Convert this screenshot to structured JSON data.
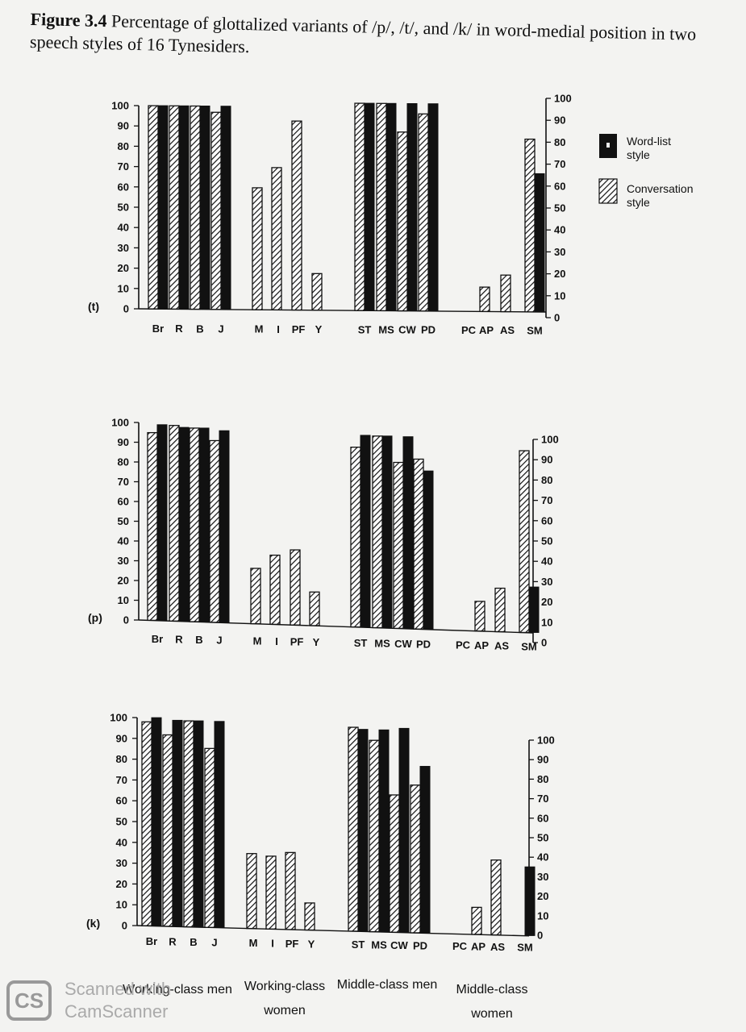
{
  "caption": {
    "figure_label": "Figure 3.4",
    "text": "Percentage of glottalized variants of /p/, /t/, and /k/ in word-medial position in two speech styles of 16 Tynesiders."
  },
  "legend": {
    "word_list": "Word-list style",
    "conversation": "Conversation style"
  },
  "group_labels": {
    "wc_men": "Working-class men",
    "wc_women": "Working-class women",
    "mc_men": "Middle-class men",
    "mc_women": "Middle-class women"
  },
  "watermark": {
    "logo": "CS",
    "line1": "Scanned with",
    "line2": "CamScanner"
  },
  "chart_data": [
    {
      "type": "bar",
      "panel_label": "(t)",
      "categories": [
        "Br",
        "R",
        "B",
        "J",
        "M",
        "I",
        "PF",
        "Y",
        "ST",
        "MS",
        "CW",
        "PD",
        "PC",
        "AP",
        "AS",
        "SM"
      ],
      "ylim": [
        0,
        100
      ],
      "yticks": [
        0,
        10,
        20,
        30,
        40,
        50,
        60,
        70,
        80,
        90,
        100
      ],
      "series": [
        {
          "name": "Conversation style",
          "values": [
            100,
            100,
            100,
            97,
            60,
            70,
            93,
            18,
            102,
            102,
            88,
            97,
            0,
            12,
            18,
            85
          ]
        },
        {
          "name": "Word-list style",
          "values": [
            100,
            100,
            100,
            100,
            null,
            null,
            null,
            null,
            102,
            102,
            102,
            102,
            null,
            null,
            null,
            68
          ]
        }
      ]
    },
    {
      "type": "bar",
      "panel_label": "(p)",
      "categories": [
        "Br",
        "R",
        "B",
        "J",
        "M",
        "I",
        "PF",
        "Y",
        "ST",
        "MS",
        "CW",
        "PD",
        "PC",
        "AP",
        "AS",
        "SM"
      ],
      "ylim": [
        0,
        100
      ],
      "yticks": [
        0,
        10,
        20,
        30,
        40,
        50,
        60,
        70,
        80,
        90,
        100
      ],
      "series": [
        {
          "name": "Conversation style",
          "values": [
            95,
            99,
            98,
            92,
            28,
            35,
            38,
            17,
            91,
            97,
            84,
            86,
            0,
            15,
            22,
            92
          ]
        },
        {
          "name": "Word-list style",
          "values": [
            99,
            98,
            98,
            97,
            null,
            null,
            null,
            null,
            97,
            97,
            97,
            80,
            null,
            null,
            null,
            23
          ]
        }
      ]
    },
    {
      "type": "bar",
      "panel_label": "(k)",
      "categories": [
        "Br",
        "R",
        "B",
        "J",
        "M",
        "I",
        "PF",
        "Y",
        "ST",
        "MS",
        "CW",
        "PD",
        "PC",
        "AP",
        "AS",
        "SM"
      ],
      "ylim": [
        0,
        100
      ],
      "yticks": [
        0,
        10,
        20,
        30,
        40,
        50,
        60,
        70,
        80,
        90,
        100
      ],
      "series": [
        {
          "name": "Conversation style",
          "values": [
            98,
            92,
            99,
            86,
            36,
            35,
            37,
            13,
            98,
            92,
            66,
            71,
            0,
            13,
            36,
            0
          ]
        },
        {
          "name": "Word-list style",
          "values": [
            100,
            99,
            99,
            99,
            null,
            null,
            null,
            null,
            97,
            97,
            98,
            80,
            null,
            null,
            null,
            33
          ]
        }
      ]
    }
  ]
}
